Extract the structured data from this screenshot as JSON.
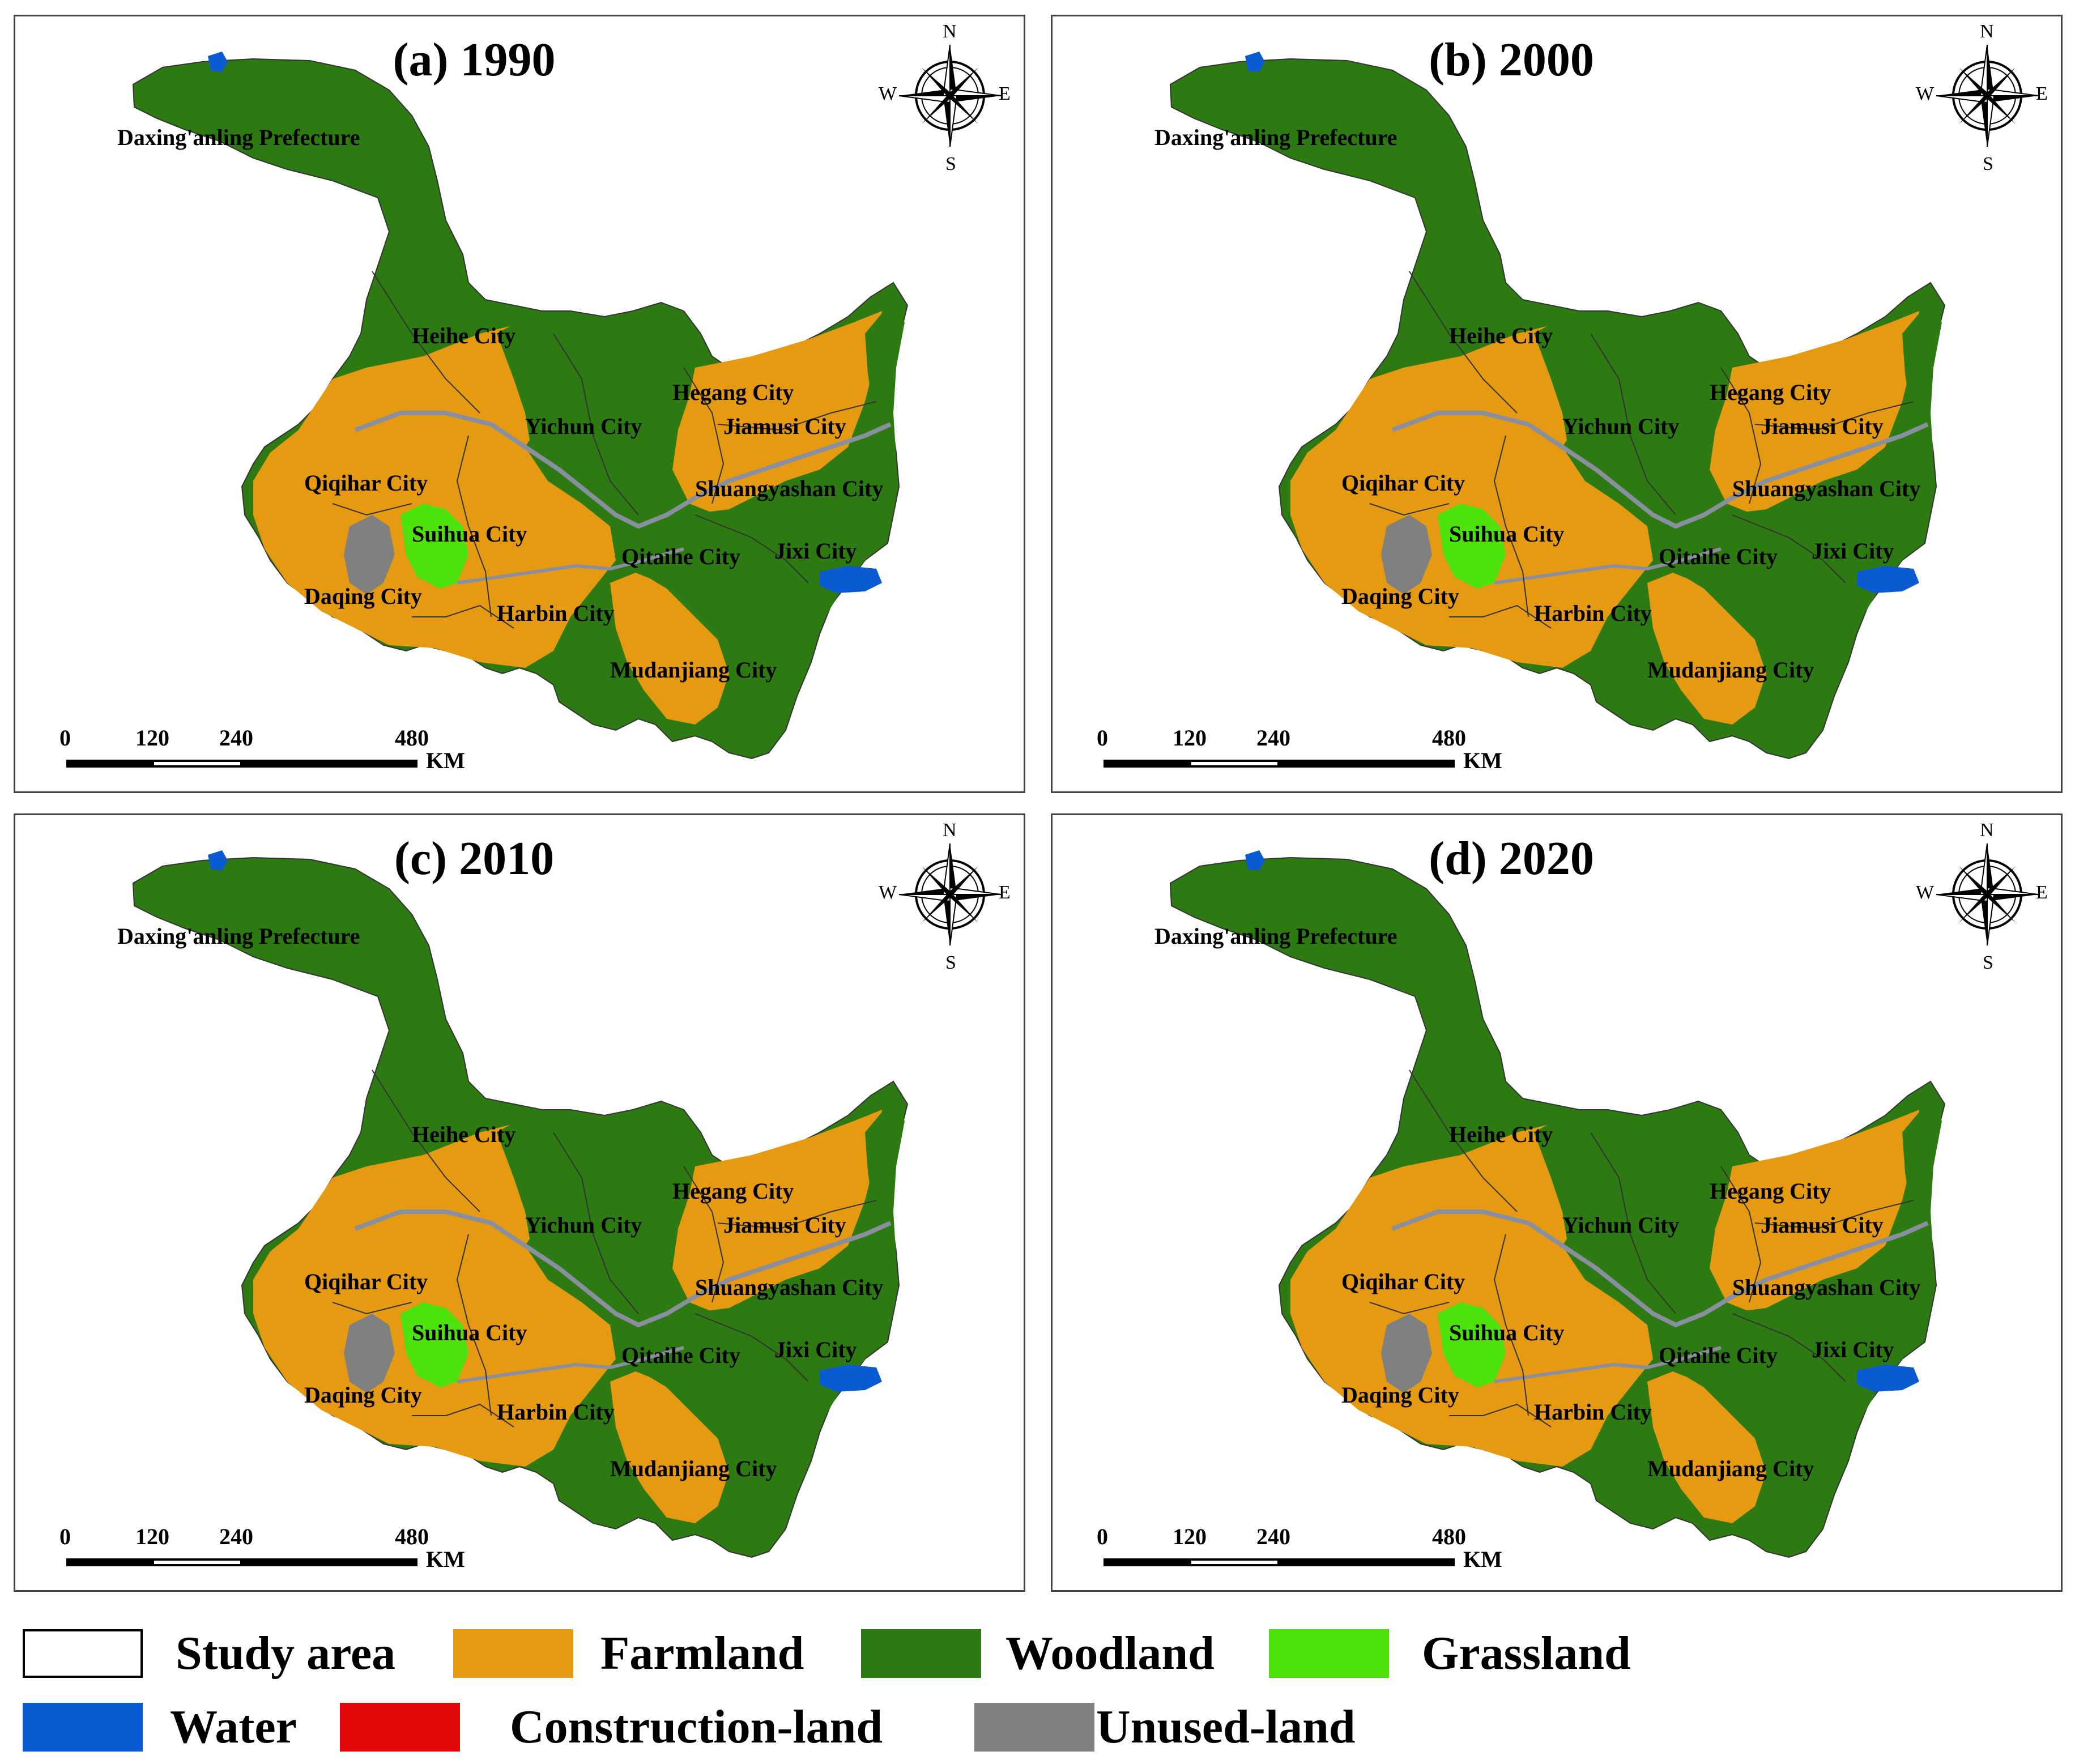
{
  "panels": [
    {
      "id": "a",
      "title": "(a) 1990"
    },
    {
      "id": "b",
      "title": "(b) 2000"
    },
    {
      "id": "c",
      "title": "(c) 2010"
    },
    {
      "id": "d",
      "title": "(d) 2020"
    }
  ],
  "cities": {
    "daxinganling": "Daxing'anling Prefecture",
    "heihe": "Heihe City",
    "hegang": "Hegang City",
    "yichun": "Yichun City",
    "jiamusi": "Jiamusi City",
    "qiqihar": "Qiqihar City",
    "shuangyashan": "Shuangyashan City",
    "suihua": "Suihua City",
    "qitaihe": "Qitaihe City",
    "jixi": "Jixi City",
    "daqing": "Daqing City",
    "harbin": "Harbin City",
    "mudanjiang": "Mudanjiang City"
  },
  "compass": {
    "n": "N",
    "s": "S",
    "e": "E",
    "w": "W"
  },
  "scale": {
    "ticks": [
      "0",
      "120",
      "240",
      "480"
    ],
    "unit": "KM"
  },
  "legend": [
    {
      "key": "study_area",
      "label": "Study area",
      "color": "#ffffff"
    },
    {
      "key": "farmland",
      "label": "Farmland",
      "color": "#e69a12"
    },
    {
      "key": "woodland",
      "label": "Woodland",
      "color": "#2d7a12"
    },
    {
      "key": "grassland",
      "label": "Grassland",
      "color": "#4ce20c"
    },
    {
      "key": "water",
      "label": "Water",
      "color": "#0a5ad2"
    },
    {
      "key": "construction_land",
      "label": "Construction-land",
      "color": "#e00808"
    },
    {
      "key": "unused_land",
      "label": "Unused-land",
      "color": "#808080"
    }
  ]
}
